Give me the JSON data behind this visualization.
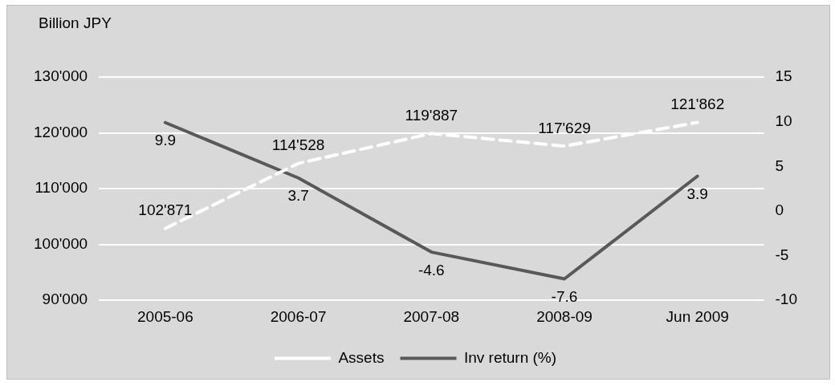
{
  "chart_data": {
    "type": "line",
    "ylabel": "Billion JPY",
    "categories": [
      "2005-06",
      "2006-07",
      "2007-08",
      "2008-09",
      "Jun 2009"
    ],
    "series": [
      {
        "name": "Assets",
        "color": "#ffffff",
        "line_style": "dashed",
        "values": [
          102871,
          114528,
          119887,
          117629,
          121862
        ],
        "value_labels": [
          "102'871",
          "114'528",
          "119'887",
          "117'629",
          "121'862"
        ]
      },
      {
        "name": "Inv return (%)",
        "color": "#595959",
        "line_style": "solid",
        "axis": "y2",
        "values": [
          9.9,
          3.7,
          -4.6,
          -7.6,
          3.9
        ],
        "value_labels": [
          "9.9",
          "3.7",
          "-4.6",
          "-7.6",
          "3.9"
        ]
      }
    ],
    "ylim": [
      90000,
      130000
    ],
    "yticks": [
      {
        "value": 90000,
        "label": "90'000"
      },
      {
        "value": 100000,
        "label": "100'000"
      },
      {
        "value": 110000,
        "label": "110'000"
      },
      {
        "value": 120000,
        "label": "120'000"
      },
      {
        "value": 130000,
        "label": "130'000"
      }
    ],
    "y2lim": [
      -10,
      15
    ],
    "y2ticks": [
      -10,
      -5,
      0,
      5,
      10,
      15
    ],
    "grid": "y",
    "legend": "bottom",
    "marker": "none"
  }
}
